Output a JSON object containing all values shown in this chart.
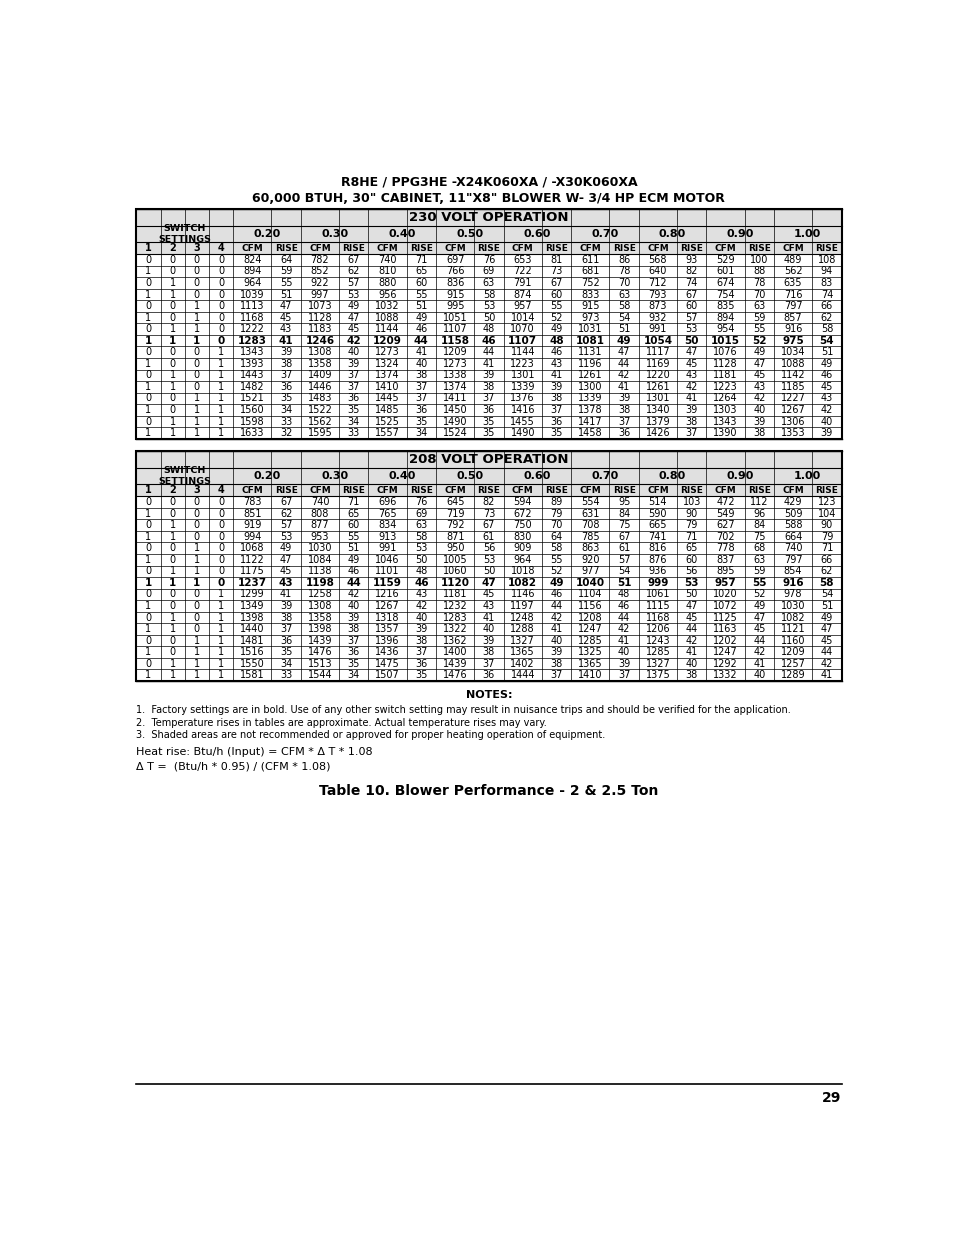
{
  "title_line1": "R8HE / PPG3HE -X24K060XA / -X30K060XA",
  "title_line2": "60,000 BTUH, 30\" CABINET, 11\"X8\" BLOWER W- 3/4 HP ECM MOTOR",
  "table_title_230": "230 VOLT OPERATION",
  "table_title_208": "208 VOLT OPERATION",
  "speed_settings": [
    "0.20",
    "0.30",
    "0.40",
    "0.50",
    "0.60",
    "0.70",
    "0.80",
    "0.90",
    "1.00"
  ],
  "data_230": [
    [
      0,
      0,
      0,
      0,
      824,
      64,
      782,
      67,
      740,
      71,
      697,
      76,
      653,
      81,
      611,
      86,
      568,
      93,
      529,
      100,
      489,
      108
    ],
    [
      1,
      0,
      0,
      0,
      894,
      59,
      852,
      62,
      810,
      65,
      766,
      69,
      722,
      73,
      681,
      78,
      640,
      82,
      601,
      88,
      562,
      94
    ],
    [
      0,
      1,
      0,
      0,
      964,
      55,
      922,
      57,
      880,
      60,
      836,
      63,
      791,
      67,
      752,
      70,
      712,
      74,
      674,
      78,
      635,
      83
    ],
    [
      1,
      1,
      0,
      0,
      1039,
      51,
      997,
      53,
      956,
      55,
      915,
      58,
      874,
      60,
      833,
      63,
      793,
      67,
      754,
      70,
      716,
      74
    ],
    [
      0,
      0,
      1,
      0,
      1113,
      47,
      1073,
      49,
      1032,
      51,
      995,
      53,
      957,
      55,
      915,
      58,
      873,
      60,
      835,
      63,
      797,
      66
    ],
    [
      1,
      0,
      1,
      0,
      1168,
      45,
      1128,
      47,
      1088,
      49,
      1051,
      50,
      1014,
      52,
      973,
      54,
      932,
      57,
      894,
      59,
      857,
      62
    ],
    [
      0,
      1,
      1,
      0,
      1222,
      43,
      1183,
      45,
      1144,
      46,
      1107,
      48,
      1070,
      49,
      1031,
      51,
      991,
      53,
      954,
      55,
      916,
      58
    ],
    [
      1,
      1,
      1,
      0,
      1283,
      41,
      1246,
      42,
      1209,
      44,
      1158,
      46,
      1107,
      48,
      1081,
      49,
      1054,
      50,
      1015,
      52,
      975,
      54
    ],
    [
      0,
      0,
      0,
      1,
      1343,
      39,
      1308,
      40,
      1273,
      41,
      1209,
      44,
      1144,
      46,
      1131,
      47,
      1117,
      47,
      1076,
      49,
      1034,
      51
    ],
    [
      1,
      0,
      0,
      1,
      1393,
      38,
      1358,
      39,
      1324,
      40,
      1273,
      41,
      1223,
      43,
      1196,
      44,
      1169,
      45,
      1128,
      47,
      1088,
      49
    ],
    [
      0,
      1,
      0,
      1,
      1443,
      37,
      1409,
      37,
      1374,
      38,
      1338,
      39,
      1301,
      41,
      1261,
      42,
      1220,
      43,
      1181,
      45,
      1142,
      46
    ],
    [
      1,
      1,
      0,
      1,
      1482,
      36,
      1446,
      37,
      1410,
      37,
      1374,
      38,
      1339,
      39,
      1300,
      41,
      1261,
      42,
      1223,
      43,
      1185,
      45
    ],
    [
      0,
      0,
      1,
      1,
      1521,
      35,
      1483,
      36,
      1445,
      37,
      1411,
      37,
      1376,
      38,
      1339,
      39,
      1301,
      41,
      1264,
      42,
      1227,
      43
    ],
    [
      1,
      0,
      1,
      1,
      1560,
      34,
      1522,
      35,
      1485,
      36,
      1450,
      36,
      1416,
      37,
      1378,
      38,
      1340,
      39,
      1303,
      40,
      1267,
      42
    ],
    [
      0,
      1,
      1,
      1,
      1598,
      33,
      1562,
      34,
      1525,
      35,
      1490,
      35,
      1455,
      36,
      1417,
      37,
      1379,
      38,
      1343,
      39,
      1306,
      40
    ],
    [
      1,
      1,
      1,
      1,
      1633,
      32,
      1595,
      33,
      1557,
      34,
      1524,
      35,
      1490,
      35,
      1458,
      36,
      1426,
      37,
      1390,
      38,
      1353,
      39
    ]
  ],
  "data_208": [
    [
      0,
      0,
      0,
      0,
      783,
      67,
      740,
      71,
      696,
      76,
      645,
      82,
      594,
      89,
      554,
      95,
      514,
      103,
      472,
      112,
      429,
      123
    ],
    [
      1,
      0,
      0,
      0,
      851,
      62,
      808,
      65,
      765,
      69,
      719,
      73,
      672,
      79,
      631,
      84,
      590,
      90,
      549,
      96,
      509,
      104
    ],
    [
      0,
      1,
      0,
      0,
      919,
      57,
      877,
      60,
      834,
      63,
      792,
      67,
      750,
      70,
      708,
      75,
      665,
      79,
      627,
      84,
      588,
      90
    ],
    [
      1,
      1,
      0,
      0,
      994,
      53,
      953,
      55,
      913,
      58,
      871,
      61,
      830,
      64,
      785,
      67,
      741,
      71,
      702,
      75,
      664,
      79
    ],
    [
      0,
      0,
      1,
      0,
      1068,
      49,
      1030,
      51,
      991,
      53,
      950,
      56,
      909,
      58,
      863,
      61,
      816,
      65,
      778,
      68,
      740,
      71
    ],
    [
      1,
      0,
      1,
      0,
      1122,
      47,
      1084,
      49,
      1046,
      50,
      1005,
      53,
      964,
      55,
      920,
      57,
      876,
      60,
      837,
      63,
      797,
      66
    ],
    [
      0,
      1,
      1,
      0,
      1175,
      45,
      1138,
      46,
      1101,
      48,
      1060,
      50,
      1018,
      52,
      977,
      54,
      936,
      56,
      895,
      59,
      854,
      62
    ],
    [
      1,
      1,
      1,
      0,
      1237,
      43,
      1198,
      44,
      1159,
      46,
      1120,
      47,
      1082,
      49,
      1040,
      51,
      999,
      53,
      957,
      55,
      916,
      58
    ],
    [
      0,
      0,
      0,
      1,
      1299,
      41,
      1258,
      42,
      1216,
      43,
      1181,
      45,
      1146,
      46,
      1104,
      48,
      1061,
      50,
      1020,
      52,
      978,
      54
    ],
    [
      1,
      0,
      0,
      1,
      1349,
      39,
      1308,
      40,
      1267,
      42,
      1232,
      43,
      1197,
      44,
      1156,
      46,
      1115,
      47,
      1072,
      49,
      1030,
      51
    ],
    [
      0,
      1,
      0,
      1,
      1398,
      38,
      1358,
      39,
      1318,
      40,
      1283,
      41,
      1248,
      42,
      1208,
      44,
      1168,
      45,
      1125,
      47,
      1082,
      49
    ],
    [
      1,
      1,
      0,
      1,
      1440,
      37,
      1398,
      38,
      1357,
      39,
      1322,
      40,
      1288,
      41,
      1247,
      42,
      1206,
      44,
      1163,
      45,
      1121,
      47
    ],
    [
      0,
      0,
      1,
      1,
      1481,
      36,
      1439,
      37,
      1396,
      38,
      1362,
      39,
      1327,
      40,
      1285,
      41,
      1243,
      42,
      1202,
      44,
      1160,
      45
    ],
    [
      1,
      0,
      1,
      1,
      1516,
      35,
      1476,
      36,
      1436,
      37,
      1400,
      38,
      1365,
      39,
      1325,
      40,
      1285,
      41,
      1247,
      42,
      1209,
      44
    ],
    [
      0,
      1,
      1,
      1,
      1550,
      34,
      1513,
      35,
      1475,
      36,
      1439,
      37,
      1402,
      38,
      1365,
      39,
      1327,
      40,
      1292,
      41,
      1257,
      42
    ],
    [
      1,
      1,
      1,
      1,
      1581,
      33,
      1544,
      34,
      1507,
      35,
      1476,
      36,
      1444,
      37,
      1410,
      37,
      1375,
      38,
      1332,
      40,
      1289,
      41
    ]
  ],
  "bold_rows_230": [
    7
  ],
  "bold_rows_208": [
    7
  ],
  "notes_title": "NOTES:",
  "notes": [
    "1.  Factory settings are in bold. Use of any other switch setting may result in nuisance trips and should be verified for the application.",
    "2.  Temperature rises in tables are approximate. Actual temperature rises may vary.",
    "3.  Shaded areas are not recommended or approved for proper heating operation of equipment."
  ],
  "formula1": "Heat rise: Btu/h (Input) = CFM * Δ T * 1.08",
  "formula2": "Δ T =  (Btu/h * 0.95) / (CFM * 1.08)",
  "caption": "Table 10. Blower Performance - 2 & 2.5 Ton",
  "page_number": "29",
  "header_bg": "#e0e0e0",
  "white_bg": "#ffffff",
  "border_color": "#000000"
}
